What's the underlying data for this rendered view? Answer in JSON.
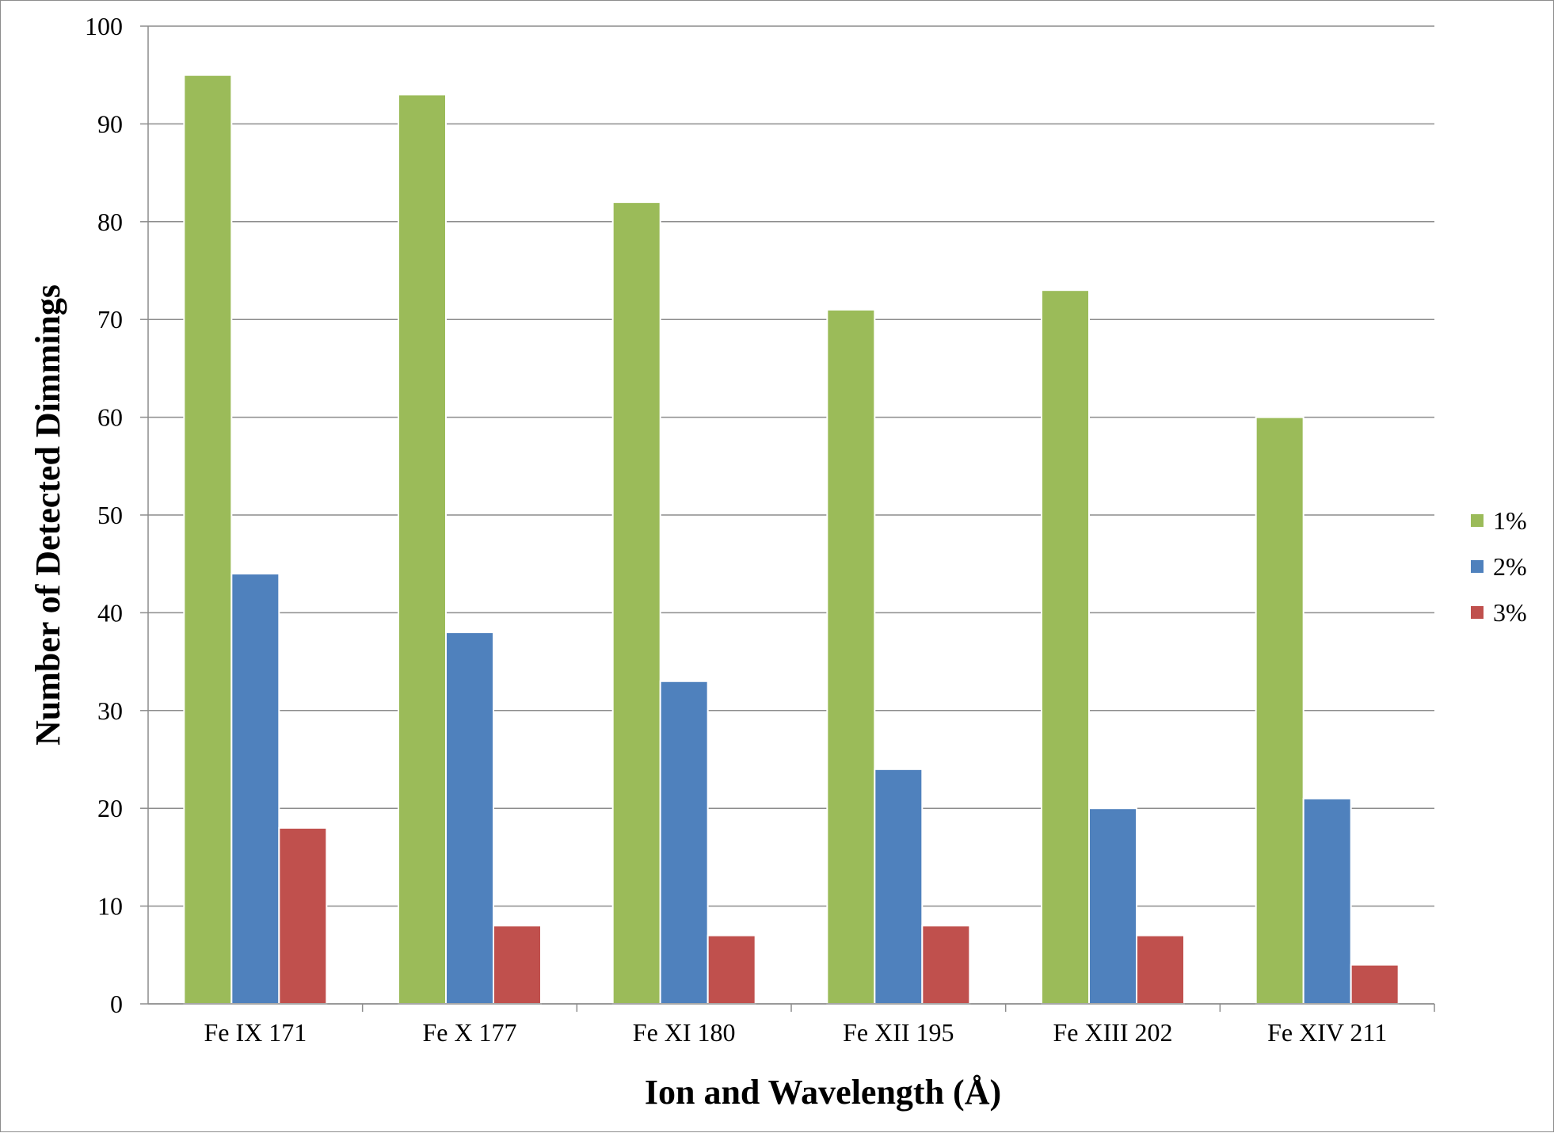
{
  "chart_data": {
    "type": "bar",
    "title": "",
    "xlabel": "Ion and Wavelength (Å)",
    "ylabel": "Number of Detected Dimmings",
    "categories": [
      "Fe IX 171",
      "Fe X 177",
      "Fe XI 180",
      "Fe XII 195",
      "Fe XIII 202",
      "Fe XIV 211"
    ],
    "series": [
      {
        "name": "1%",
        "color": "#9bbb59",
        "values": [
          95,
          93,
          82,
          71,
          73,
          60
        ]
      },
      {
        "name": "2%",
        "color": "#4f81bd",
        "values": [
          44,
          38,
          33,
          24,
          20,
          21
        ]
      },
      {
        "name": "3%",
        "color": "#c0504d",
        "values": [
          18,
          8,
          7,
          8,
          7,
          4
        ]
      }
    ],
    "ylim": [
      0,
      100
    ],
    "yticks": [
      "0",
      "10",
      "20",
      "30",
      "40",
      "50",
      "60",
      "70",
      "80",
      "90",
      "100"
    ],
    "grid": true,
    "legend_position": "right"
  }
}
